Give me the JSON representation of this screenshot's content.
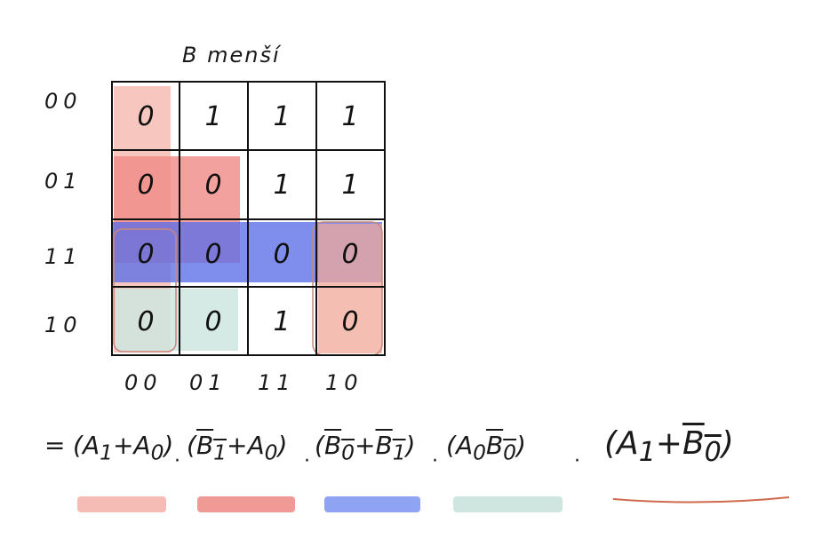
{
  "title": "B menší",
  "row_labels": [
    "00",
    "01",
    "11",
    "10"
  ],
  "col_labels": [
    "00",
    "01",
    "11",
    "10"
  ],
  "cells": [
    [
      "0",
      "1",
      "1",
      "1"
    ],
    [
      "0",
      "0",
      "1",
      "1"
    ],
    [
      "0",
      "0",
      "0",
      "0"
    ],
    [
      "0",
      "0",
      "1",
      "0"
    ]
  ],
  "formula": {
    "equals": "=",
    "terms": [
      {
        "open": "(",
        "a": "A",
        "a_sub": "1",
        "op": "+",
        "b": "A",
        "b_sub": "0",
        "close": ")",
        "color": "#f4bcb4"
      },
      {
        "open": "(",
        "a": "B",
        "a_sub": "1",
        "op": "+",
        "b": "A",
        "b_sub": "0",
        "close": ")",
        "color": "#f09a96"
      },
      {
        "open": "(",
        "a": "B",
        "a_sub": "0",
        "op": "+",
        "b": "B",
        "b_sub": "1",
        "close": ")",
        "color": "#8ea3f2"
      },
      {
        "open": "(",
        "a": "A",
        "a_sub": "0",
        "op": "",
        "b": "B",
        "b_sub": "0",
        "close": ")",
        "color": "#cfe6e0"
      },
      {
        "open": "(",
        "a": "A",
        "a_sub": "1",
        "op": "+",
        "b": "B",
        "b_sub": "0",
        "close": ")",
        "color": "#e5a38f"
      }
    ],
    "dot": "·"
  },
  "colors": {
    "group_pink": "#f4bcb4",
    "group_red": "#f08a86",
    "group_blue": "#5b6ee8",
    "group_teal": "#cfe6e0",
    "group_outline": "#c9877a",
    "grid": "#111111"
  }
}
